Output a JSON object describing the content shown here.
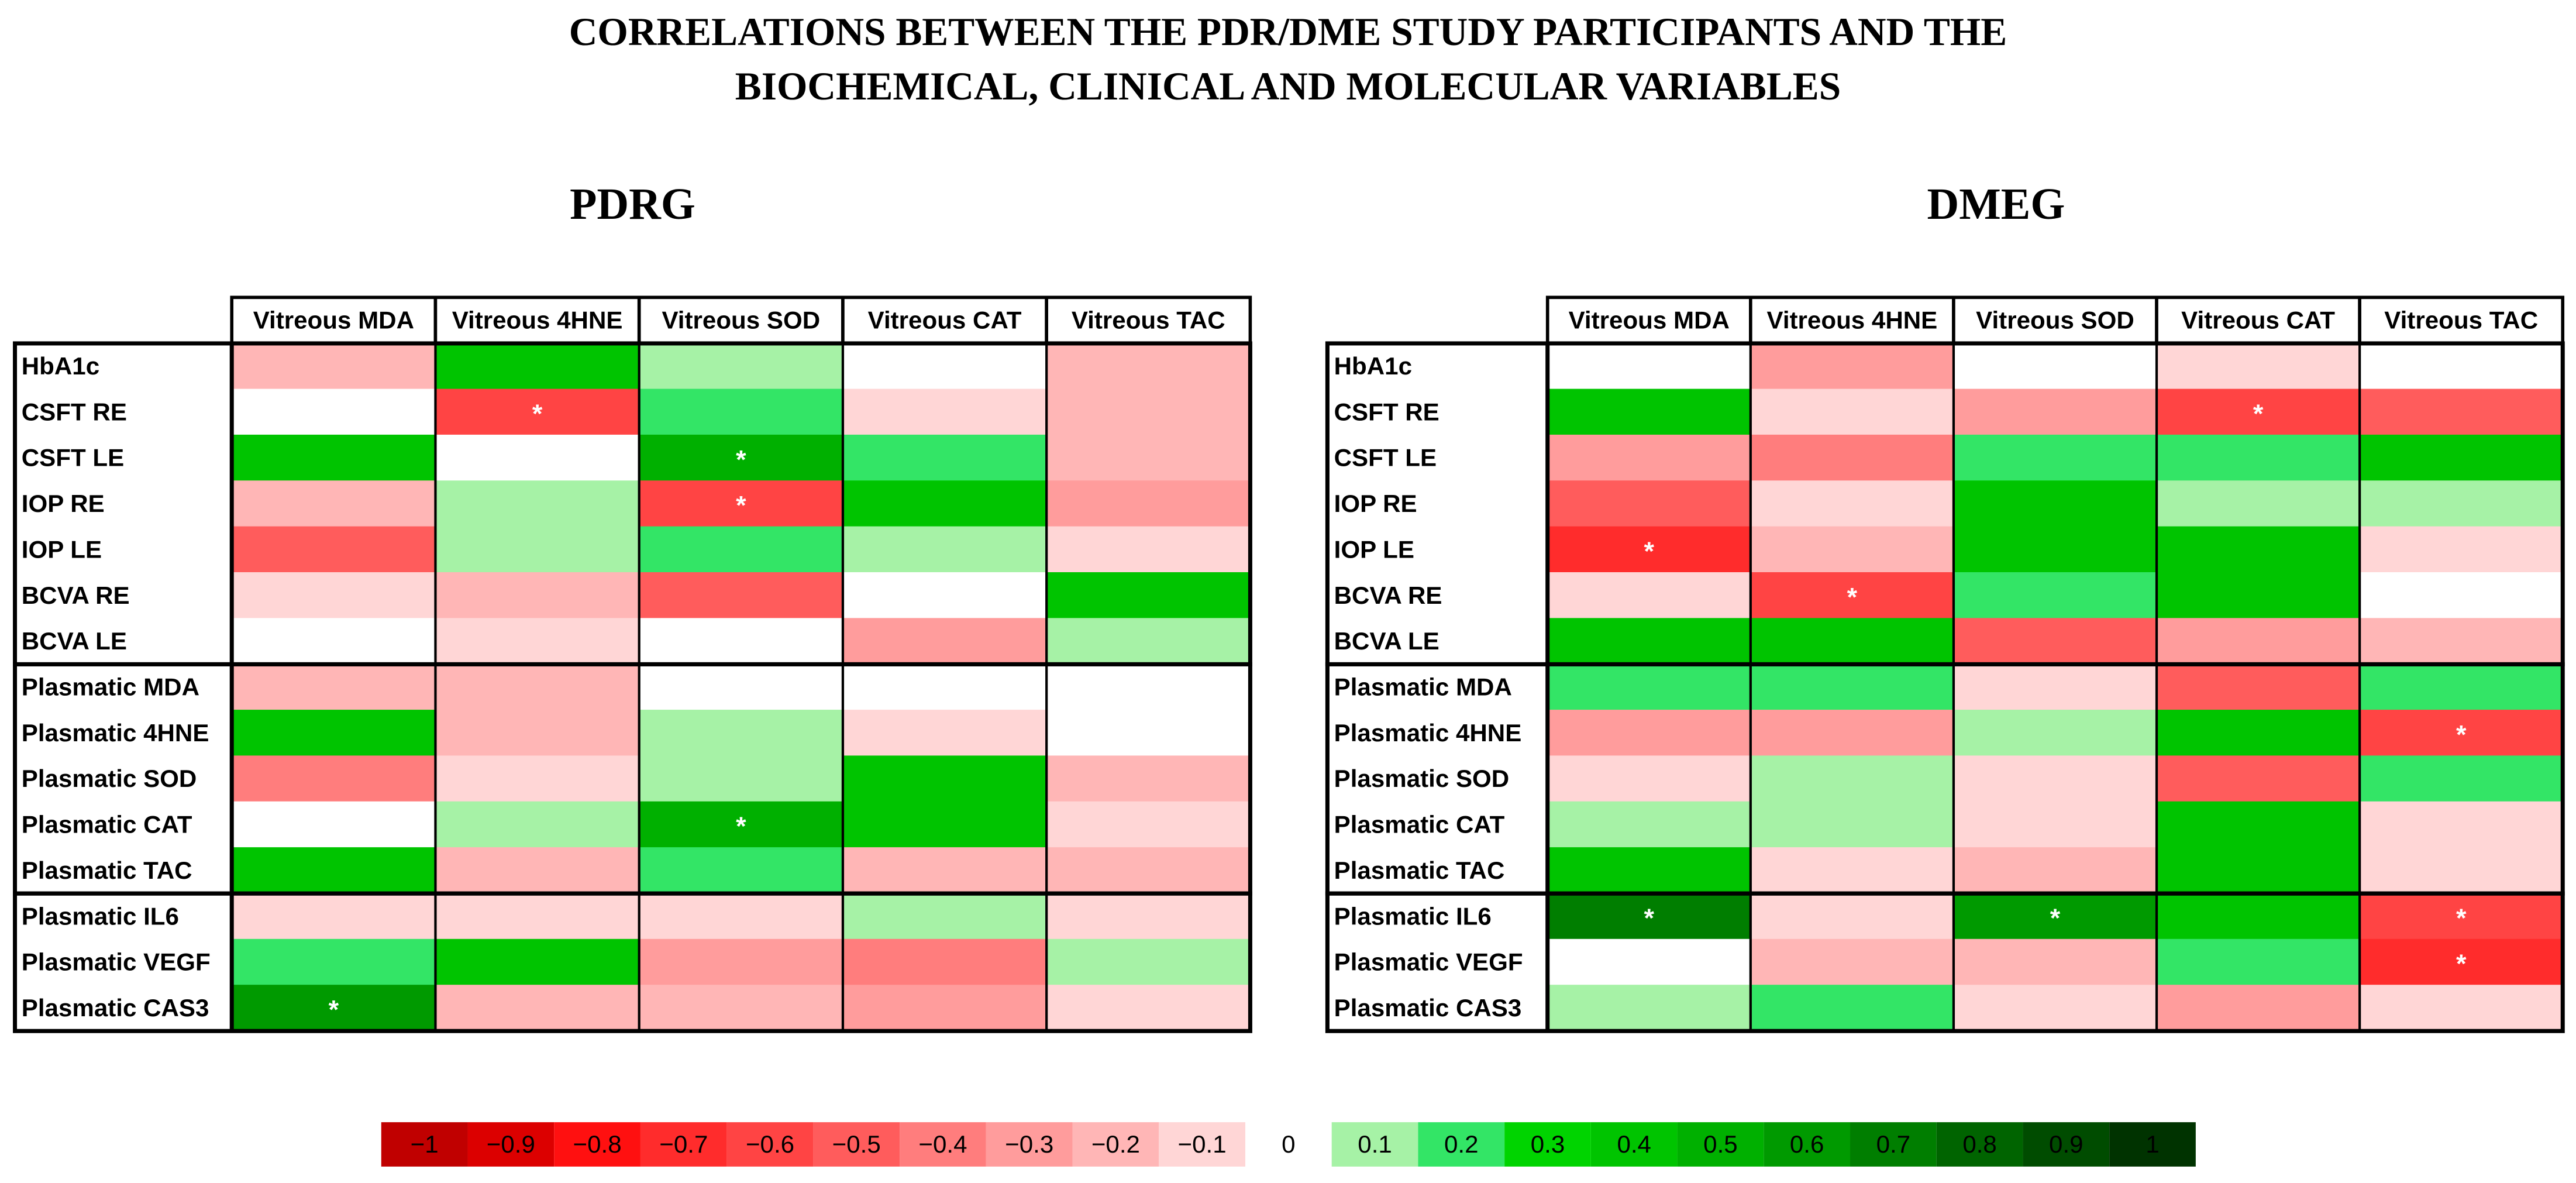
{
  "title_lines": [
    "CORRELATIONS BETWEEN THE PDR/DME STUDY PARTICIPANTS AND THE",
    "BIOCHEMICAL, CLINICAL AND MOLECULAR VARIABLES"
  ],
  "significance_marker": "*",
  "chart_data": [
    {
      "type": "heatmap",
      "title": "PDRG",
      "x": [
        "Vitreous MDA",
        "Vitreous 4HNE",
        "Vitreous SOD",
        "Vitreous CAT",
        "Vitreous TAC"
      ],
      "y": [
        "HbA1c",
        "CSFT RE",
        "CSFT LE",
        "IOP RE",
        "IOP LE",
        "BCVA RE",
        "BCVA LE",
        "Plasmatic MDA",
        "Plasmatic 4HNE",
        "Plasmatic SOD",
        "Plasmatic CAT",
        "Plasmatic TAC",
        "Plasmatic IL6",
        "Plasmatic VEGF",
        "Plasmatic CAS3"
      ],
      "values": [
        [
          -0.2,
          0.4,
          0.1,
          0,
          -0.2
        ],
        [
          0,
          -0.6,
          0.2,
          -0.1,
          -0.2
        ],
        [
          0.4,
          0,
          0.5,
          0.2,
          -0.2
        ],
        [
          -0.2,
          0.1,
          -0.6,
          0.4,
          -0.3
        ],
        [
          -0.5,
          0.1,
          0.2,
          0.1,
          -0.1
        ],
        [
          -0.1,
          -0.2,
          -0.5,
          0,
          0.4
        ],
        [
          0,
          -0.1,
          0,
          -0.3,
          0.1
        ],
        [
          -0.2,
          -0.2,
          0,
          0,
          0
        ],
        [
          0.4,
          -0.2,
          0.1,
          -0.1,
          0
        ],
        [
          -0.4,
          -0.1,
          0.1,
          0.4,
          -0.2
        ],
        [
          0,
          0.1,
          0.5,
          0.4,
          -0.1
        ],
        [
          0.4,
          -0.2,
          0.2,
          -0.2,
          -0.2
        ],
        [
          -0.1,
          -0.1,
          -0.1,
          0.1,
          -0.1
        ],
        [
          0.2,
          0.4,
          -0.3,
          -0.4,
          0.1
        ],
        [
          0.6,
          -0.2,
          -0.2,
          -0.3,
          -0.1
        ]
      ],
      "significant": [
        [
          1,
          1
        ],
        [
          2,
          2
        ],
        [
          3,
          2
        ],
        [
          10,
          2
        ],
        [
          14,
          0
        ]
      ]
    },
    {
      "type": "heatmap",
      "title": "DMEG",
      "x": [
        "Vitreous MDA",
        "Vitreous 4HNE",
        "Vitreous SOD",
        "Vitreous CAT",
        "Vitreous TAC"
      ],
      "y": [
        "HbA1c",
        "CSFT RE",
        "CSFT LE",
        "IOP RE",
        "IOP LE",
        "BCVA RE",
        "BCVA LE",
        "Plasmatic MDA",
        "Plasmatic 4HNE",
        "Plasmatic SOD",
        "Plasmatic CAT",
        "Plasmatic TAC",
        "Plasmatic IL6",
        "Plasmatic VEGF",
        "Plasmatic CAS3"
      ],
      "values": [
        [
          0,
          -0.3,
          0,
          -0.1,
          0
        ],
        [
          0.4,
          -0.1,
          -0.3,
          -0.6,
          -0.5
        ],
        [
          -0.3,
          -0.4,
          0.2,
          0.2,
          0.4
        ],
        [
          -0.5,
          -0.1,
          0.4,
          0.1,
          0.1
        ],
        [
          -0.7,
          -0.2,
          0.4,
          0.4,
          -0.1
        ],
        [
          -0.1,
          -0.6,
          0.2,
          0.4,
          0
        ],
        [
          0.4,
          0.4,
          -0.5,
          -0.3,
          -0.2
        ],
        [
          0.2,
          0.2,
          -0.1,
          -0.5,
          0.2
        ],
        [
          -0.3,
          -0.3,
          0.1,
          0.4,
          -0.6
        ],
        [
          -0.1,
          0.1,
          -0.1,
          -0.5,
          0.2
        ],
        [
          0.1,
          0.1,
          -0.1,
          0.4,
          -0.1
        ],
        [
          0.4,
          -0.1,
          -0.2,
          0.4,
          -0.1
        ],
        [
          0.7,
          -0.1,
          0.6,
          0.4,
          -0.6
        ],
        [
          0,
          -0.2,
          -0.2,
          0.2,
          -0.7
        ],
        [
          0.1,
          0.2,
          -0.1,
          -0.3,
          -0.1
        ]
      ],
      "significant": [
        [
          1,
          3
        ],
        [
          4,
          0
        ],
        [
          5,
          1
        ],
        [
          8,
          4
        ],
        [
          12,
          0
        ],
        [
          12,
          2
        ],
        [
          12,
          4
        ],
        [
          13,
          4
        ]
      ]
    }
  ],
  "colorscale": {
    "ticks": [
      {
        "value": -1,
        "label": "−1"
      },
      {
        "value": -0.9,
        "label": "−0.9"
      },
      {
        "value": -0.8,
        "label": "−0.8"
      },
      {
        "value": -0.7,
        "label": "−0.7"
      },
      {
        "value": -0.6,
        "label": "−0.6"
      },
      {
        "value": -0.5,
        "label": "−0.5"
      },
      {
        "value": -0.4,
        "label": "−0.4"
      },
      {
        "value": -0.3,
        "label": "−0.3"
      },
      {
        "value": -0.2,
        "label": "−0.2"
      },
      {
        "value": -0.1,
        "label": "−0.1"
      },
      0,
      0.1,
      0.2,
      0.3,
      0.4,
      0.5,
      0.6,
      0.7,
      0.8,
      0.9,
      1
    ],
    "colors": [
      "#c00000",
      "#dc0000",
      "#ff1010",
      "#ff2c2c",
      "#ff4444",
      "#ff5c5c",
      "#ff7d7d",
      "#ff9c9c",
      "#ffb6b6",
      "#ffd6d6",
      "#ffffff",
      "#a6f2a6",
      "#33e566",
      "#00d400",
      "#00c400",
      "#00b000",
      "#009a00",
      "#007e00",
      "#006400",
      "#004c00",
      "#003300"
    ]
  }
}
